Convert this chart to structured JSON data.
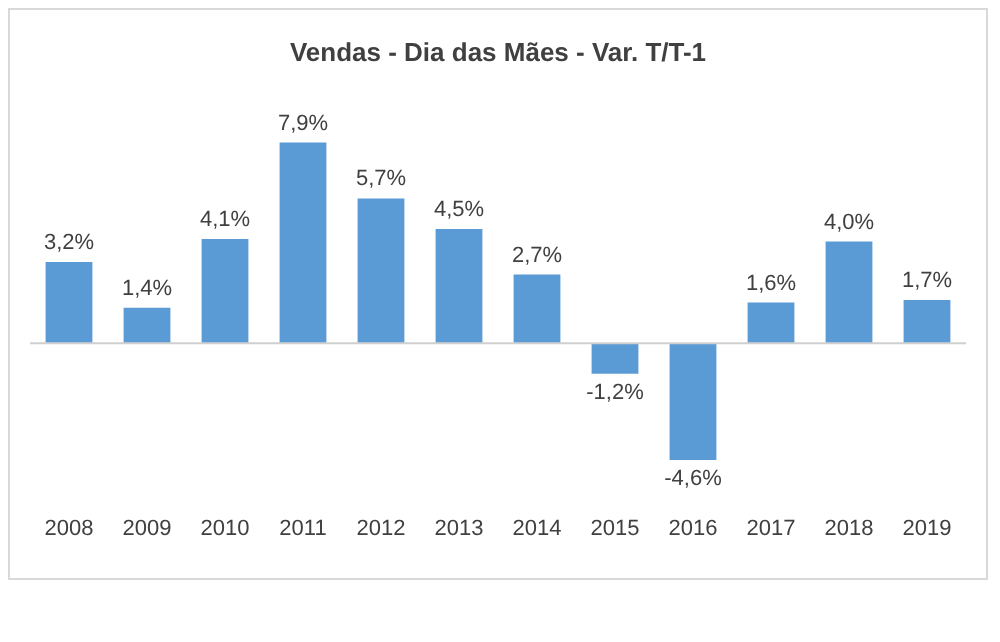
{
  "chart_data": {
    "type": "bar",
    "title": "Vendas - Dia das Mães - Var. T/T-1",
    "categories": [
      "2008",
      "2009",
      "2010",
      "2011",
      "2012",
      "2013",
      "2014",
      "2015",
      "2016",
      "2017",
      "2018",
      "2019"
    ],
    "values": [
      3.2,
      1.4,
      4.1,
      7.9,
      5.7,
      4.5,
      2.7,
      -1.2,
      -4.6,
      1.6,
      4.0,
      1.7
    ],
    "value_labels": [
      "3,2%",
      "1,4%",
      "4,1%",
      "7,9%",
      "5,7%",
      "4,5%",
      "2,7%",
      "-1,2%",
      "-4,6%",
      "1,6%",
      "4,0%",
      "1,7%"
    ],
    "color": "#5b9bd5",
    "grid": false,
    "legend": false
  }
}
